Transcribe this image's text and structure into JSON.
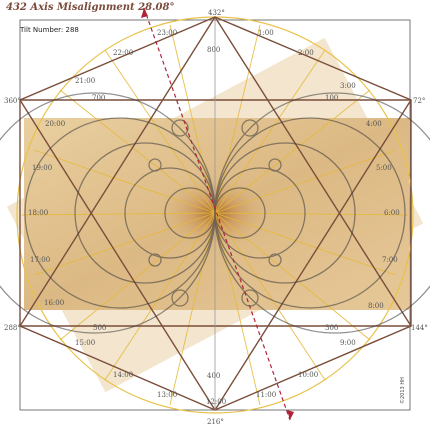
{
  "header": {
    "title": "432 Axis Misalignment 28.08°",
    "tilt": "Tilt Number:  288"
  },
  "degrees": {
    "top": "432°",
    "left": "360°",
    "right": "72°",
    "bottom_left": "288°",
    "bottom_right": "144°",
    "bottom": "216°"
  },
  "axis_marks": {
    "top": "800",
    "bottom": "400",
    "upper_left": "700",
    "upper_right": "100",
    "lower_left": "500",
    "lower_right": "300"
  },
  "hours": [
    "23:00",
    "1:00",
    "22:00",
    "2:00",
    "21:00",
    "3:00",
    "20:00",
    "4:00",
    "19:00",
    "5:00",
    "18:00",
    "6:00",
    "17:00",
    "7:00",
    "16:00",
    "8:00",
    "15:00",
    "9:00",
    "14:00",
    "10:00",
    "13:00",
    "11:00",
    "12:00"
  ],
  "copyright": "©2013 HH",
  "colors": {
    "frame": "#7a4e3a",
    "circle": "#e8c24a",
    "rays": "#e5b93a",
    "axis": "#b0243a",
    "panel": "#e8cfa2"
  }
}
